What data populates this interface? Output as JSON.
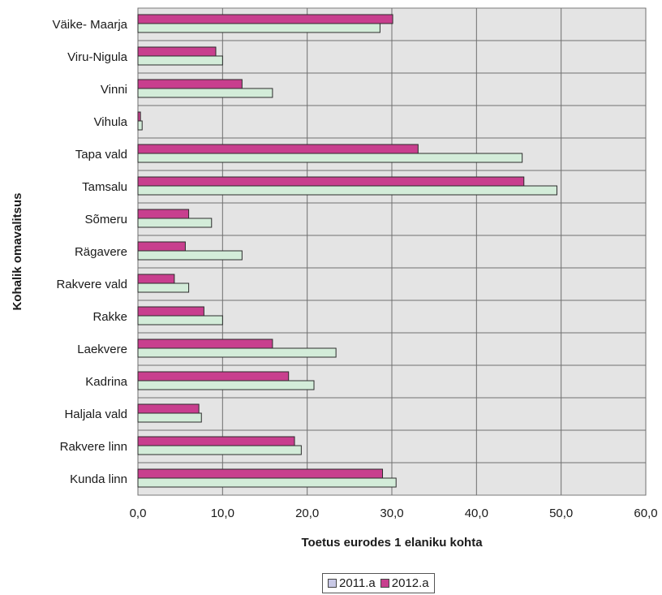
{
  "chart_data": {
    "type": "bar",
    "orientation": "horizontal",
    "title": "",
    "xlabel": "Toetus eurodes 1 elaniku kohta",
    "ylabel": "Kohalik omavalitsus",
    "xlim": [
      0,
      60
    ],
    "xticks": [
      "0,0",
      "10,0",
      "20,0",
      "30,0",
      "40,0",
      "50,0",
      "60,0"
    ],
    "grid": true,
    "legend_position": "bottom",
    "categories": [
      "Väike- Maarja",
      "Viru-Nigula",
      "Vinni",
      "Vihula",
      "Tapa vald",
      "Tamsalu",
      "Sõmeru",
      "Rägavere",
      "Rakvere vald",
      "Rakke",
      "Laekvere",
      "Kadrina",
      "Haljala vald",
      "Rakvere linn",
      "Kunda linn"
    ],
    "series": [
      {
        "name": "2011.a",
        "color": "#d3ecd9",
        "legend_color": "#c9c9e6",
        "values": [
          28.6,
          10.0,
          15.9,
          0.5,
          45.4,
          49.5,
          8.7,
          12.3,
          6.0,
          10.0,
          23.4,
          20.8,
          7.5,
          19.3,
          30.5
        ]
      },
      {
        "name": "2012.a",
        "color": "#c83f8e",
        "legend_color": "#c83f8e",
        "values": [
          30.1,
          9.2,
          12.3,
          0.3,
          33.1,
          45.6,
          6.0,
          5.6,
          4.3,
          7.8,
          15.9,
          17.8,
          7.2,
          18.5,
          28.9
        ]
      }
    ]
  }
}
